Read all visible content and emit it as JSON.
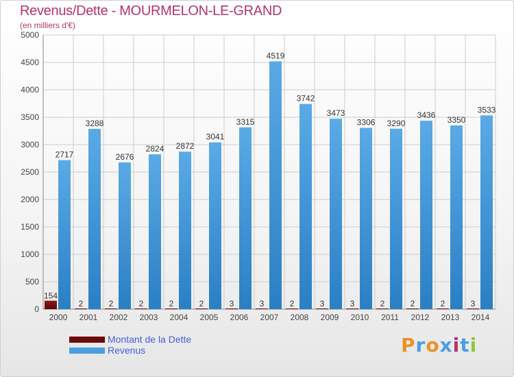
{
  "chart_data": {
    "type": "bar",
    "title": "Revenus/Dette - MOURMELON-LE-GRAND",
    "subtitle": "(en milliers d'€)",
    "categories": [
      "2000",
      "2001",
      "2002",
      "2003",
      "2004",
      "2005",
      "2006",
      "2007",
      "2008",
      "2009",
      "2010",
      "2011",
      "2012",
      "2013",
      "2014"
    ],
    "series": [
      {
        "name": "Montant de la Dette",
        "color": "#7a1010",
        "values": [
          154,
          2,
          2,
          2,
          2,
          2,
          3,
          3,
          2,
          3,
          3,
          2,
          2,
          2,
          3
        ]
      },
      {
        "name": "Revenus",
        "color": "#4a9fe0",
        "values": [
          2717,
          3288,
          2676,
          2824,
          2872,
          3041,
          3315,
          4519,
          3742,
          3473,
          3306,
          3290,
          3436,
          3350,
          3533
        ]
      }
    ],
    "ylim": [
      0,
      5000
    ],
    "yticks": [
      0,
      500,
      1000,
      1500,
      2000,
      2500,
      3000,
      3500,
      4000,
      4500,
      5000
    ],
    "grid": true,
    "legend_position": "bottom-left"
  },
  "brand": {
    "logo_text": "Proxiti",
    "logo_colors": [
      "#e8932a",
      "#4a9fe0",
      "#e8932a",
      "#4a9fe0",
      "#b5336b",
      "#4a9fe0",
      "#8cc63f"
    ]
  },
  "colors": {
    "title": "#b5336b",
    "legend_text": "#4a5be0",
    "grid": "#cccccc"
  }
}
